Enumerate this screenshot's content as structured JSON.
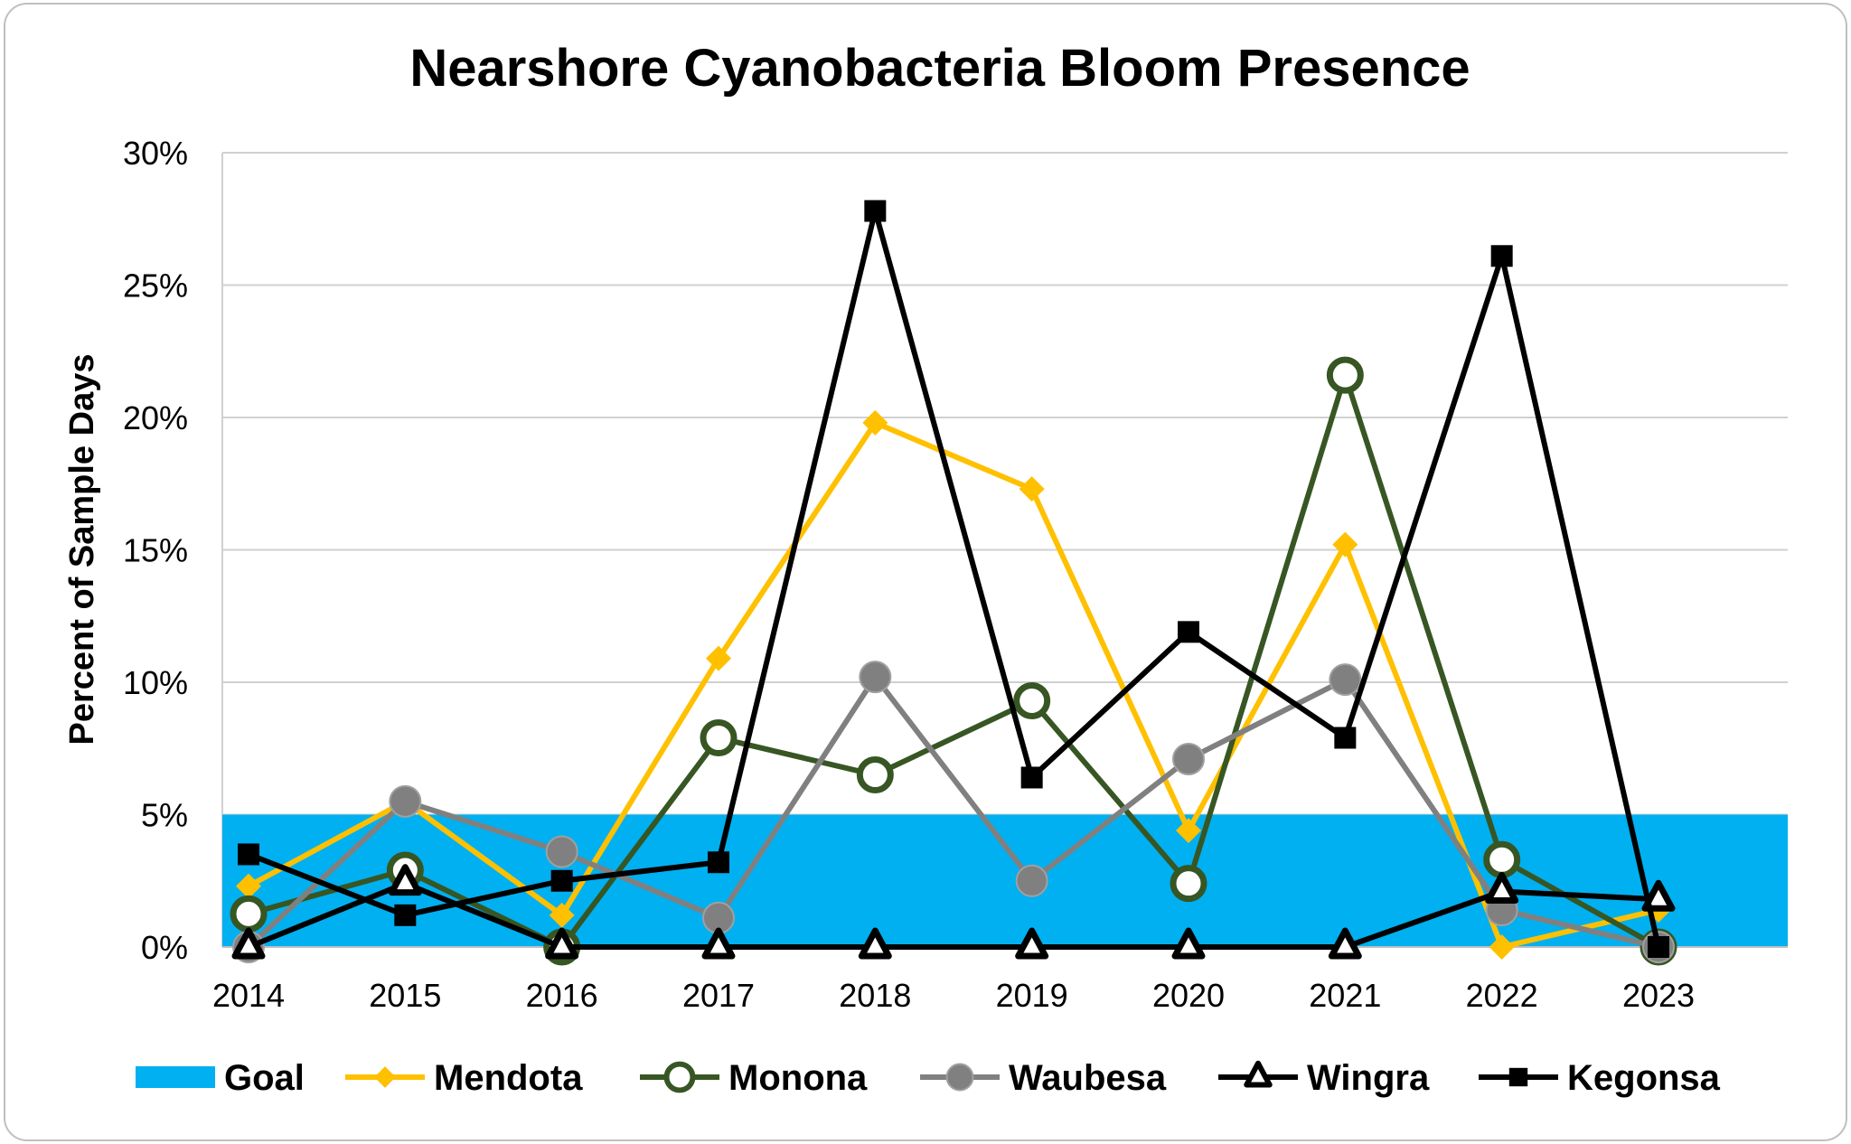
{
  "chart_data": {
    "type": "line",
    "title": "Nearshore Cyanobacteria Bloom Presence",
    "xlabel": "",
    "ylabel": "Percent of Sample Days",
    "x": [
      "2014",
      "2015",
      "2016",
      "2017",
      "2018",
      "2019",
      "2020",
      "2021",
      "2022",
      "2023"
    ],
    "ylim": [
      0,
      30
    ],
    "yticks": [
      "0%",
      "5%",
      "10%",
      "15%",
      "20%",
      "25%",
      "30%"
    ],
    "grid": true,
    "legend_position": "bottom",
    "goal": {
      "name": "Goal",
      "range": [
        0,
        5
      ],
      "color": "#00B0F0"
    },
    "series": [
      {
        "name": "Mendota",
        "color": "#FFC000",
        "marker": "diamond",
        "values": [
          2.3,
          5.5,
          1.2,
          10.9,
          19.8,
          17.3,
          4.4,
          15.2,
          0,
          1.4
        ]
      },
      {
        "name": "Monona",
        "color": "#375623",
        "marker": "open-circle",
        "values": [
          1.25,
          2.9,
          0,
          7.9,
          6.5,
          9.3,
          2.4,
          21.6,
          3.3,
          0
        ]
      },
      {
        "name": "Waubesa",
        "color": "#808080",
        "marker": "circle",
        "values": [
          0,
          5.5,
          3.6,
          1.1,
          10.2,
          2.5,
          7.1,
          10.1,
          1.4,
          0
        ]
      },
      {
        "name": "Wingra",
        "color": "#000000",
        "marker": "open-triangle",
        "values": [
          0,
          2.4,
          0,
          0,
          0,
          0,
          0,
          0,
          2.1,
          1.8
        ]
      },
      {
        "name": "Kegonsa",
        "color": "#000000",
        "marker": "square",
        "values": [
          3.5,
          1.2,
          2.5,
          3.2,
          27.8,
          6.4,
          11.9,
          7.9,
          26.1,
          0
        ]
      }
    ]
  }
}
